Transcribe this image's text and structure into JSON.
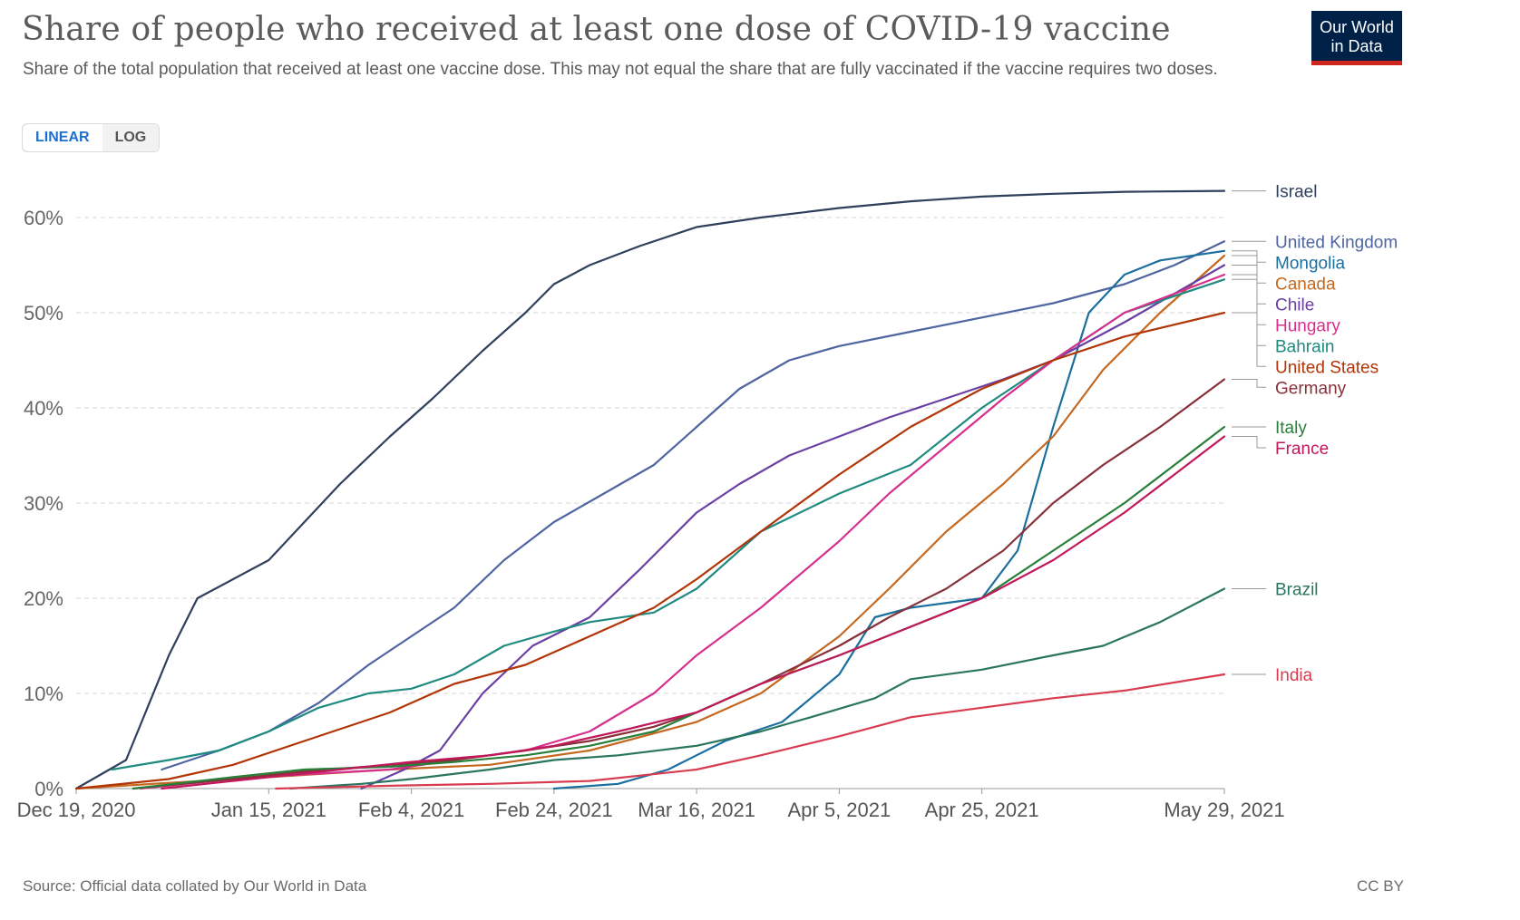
{
  "header": {
    "title": "Share of people who received at least one dose of COVID-19 vaccine",
    "subtitle": "Share of the total population that received at least one vaccine dose. This may not equal the share that are fully vaccinated if the vaccine requires two doses.",
    "logo_line1": "Our World",
    "logo_line2": "in Data"
  },
  "controls": {
    "linear_label": "LINEAR",
    "log_label": "LOG",
    "selected": "LINEAR"
  },
  "footer": {
    "source": "Source: Official data collated by Our World in Data",
    "license": "CC BY"
  },
  "chart_data": {
    "type": "line",
    "x_axis_type": "date",
    "xlim": [
      "2020-12-19",
      "2021-05-29"
    ],
    "ylim": [
      0,
      64
    ],
    "y_ticks": [
      0,
      10,
      20,
      30,
      40,
      50,
      60
    ],
    "y_tick_labels": [
      "0%",
      "10%",
      "20%",
      "30%",
      "40%",
      "50%",
      "60%"
    ],
    "x_ticks": [
      "2020-12-19",
      "2021-01-15",
      "2021-02-04",
      "2021-02-24",
      "2021-03-16",
      "2021-04-05",
      "2021-04-25",
      "2021-05-29"
    ],
    "x_tick_labels": [
      "Dec 19, 2020",
      "Jan 15, 2021",
      "Feb 4, 2021",
      "Feb 24, 2021",
      "Mar 16, 2021",
      "Apr 5, 2021",
      "Apr 25, 2021",
      "May 29, 2021"
    ],
    "grid": "horizontal dashed",
    "legend_placement": "right, labels at line ends",
    "series": [
      {
        "name": "Israel",
        "color": "#2f3f5c",
        "x": [
          "2020-12-19",
          "2020-12-26",
          "2021-01-01",
          "2021-01-05",
          "2021-01-10",
          "2021-01-15",
          "2021-01-20",
          "2021-01-25",
          "2021-02-01",
          "2021-02-07",
          "2021-02-14",
          "2021-02-20",
          "2021-02-24",
          "2021-03-01",
          "2021-03-08",
          "2021-03-16",
          "2021-03-25",
          "2021-04-05",
          "2021-04-15",
          "2021-04-25",
          "2021-05-05",
          "2021-05-15",
          "2021-05-29"
        ],
        "y": [
          0,
          3,
          14,
          20,
          22,
          24,
          28,
          32,
          37,
          41,
          46,
          50,
          53,
          55,
          57,
          59,
          60,
          61,
          61.7,
          62.2,
          62.5,
          62.7,
          62.8
        ]
      },
      {
        "name": "United Kingdom",
        "color": "#4e65a0",
        "x": [
          "2020-12-31",
          "2021-01-08",
          "2021-01-15",
          "2021-01-22",
          "2021-01-29",
          "2021-02-04",
          "2021-02-10",
          "2021-02-17",
          "2021-02-24",
          "2021-03-03",
          "2021-03-10",
          "2021-03-16",
          "2021-03-22",
          "2021-03-29",
          "2021-04-05",
          "2021-04-15",
          "2021-04-25",
          "2021-05-05",
          "2021-05-15",
          "2021-05-22",
          "2021-05-29"
        ],
        "y": [
          2,
          4,
          6,
          9,
          13,
          16,
          19,
          24,
          28,
          31,
          34,
          38,
          42,
          45,
          46.5,
          48,
          49.5,
          51,
          53,
          55,
          57.5
        ]
      },
      {
        "name": "Mongolia",
        "color": "#1c6f9d",
        "x": [
          "2021-02-24",
          "2021-03-05",
          "2021-03-12",
          "2021-03-20",
          "2021-03-28",
          "2021-04-05",
          "2021-04-10",
          "2021-04-15",
          "2021-04-25",
          "2021-04-30",
          "2021-05-05",
          "2021-05-10",
          "2021-05-15",
          "2021-05-20",
          "2021-05-29"
        ],
        "y": [
          0,
          0.5,
          2,
          5,
          7,
          12,
          18,
          19,
          20,
          25,
          38,
          50,
          54,
          55.5,
          56.5
        ]
      },
      {
        "name": "Canada",
        "color": "#c4681f",
        "x": [
          "2020-12-19",
          "2021-01-01",
          "2021-01-15",
          "2021-02-01",
          "2021-02-15",
          "2021-03-01",
          "2021-03-16",
          "2021-03-25",
          "2021-04-05",
          "2021-04-12",
          "2021-04-20",
          "2021-04-28",
          "2021-05-05",
          "2021-05-12",
          "2021-05-20",
          "2021-05-29"
        ],
        "y": [
          0,
          0.6,
          1.2,
          2,
          2.5,
          4,
          7,
          10,
          16,
          21,
          27,
          32,
          37,
          44,
          50,
          56
        ]
      },
      {
        "name": "Chile",
        "color": "#6a3fa3",
        "x": [
          "2021-01-28",
          "2021-02-03",
          "2021-02-08",
          "2021-02-14",
          "2021-02-21",
          "2021-03-01",
          "2021-03-08",
          "2021-03-16",
          "2021-03-22",
          "2021-03-29",
          "2021-04-05",
          "2021-04-12",
          "2021-04-20",
          "2021-04-28",
          "2021-05-05",
          "2021-05-15",
          "2021-05-29"
        ],
        "y": [
          0,
          2,
          4,
          10,
          15,
          18,
          23,
          29,
          32,
          35,
          37,
          39,
          41,
          43,
          45,
          49,
          55
        ]
      },
      {
        "name": "Bahrain",
        "color": "#1f8a80",
        "x": [
          "2020-12-24",
          "2021-01-01",
          "2021-01-08",
          "2021-01-15",
          "2021-01-22",
          "2021-01-29",
          "2021-02-04",
          "2021-02-10",
          "2021-02-17",
          "2021-02-24",
          "2021-03-01",
          "2021-03-10",
          "2021-03-16",
          "2021-03-25",
          "2021-04-05",
          "2021-04-15",
          "2021-04-25",
          "2021-05-05",
          "2021-05-15",
          "2021-05-29"
        ],
        "y": [
          2,
          3,
          4,
          6,
          8.5,
          10,
          10.5,
          12,
          15,
          16.5,
          17.5,
          18.5,
          21,
          27,
          31,
          34,
          40,
          45,
          50,
          53.5
        ]
      },
      {
        "name": "Hungary",
        "color": "#d62f8e",
        "x": [
          "2020-12-28",
          "2021-01-10",
          "2021-01-20",
          "2021-02-01",
          "2021-02-10",
          "2021-02-20",
          "2021-03-01",
          "2021-03-10",
          "2021-03-16",
          "2021-03-25",
          "2021-04-05",
          "2021-04-12",
          "2021-04-20",
          "2021-04-28",
          "2021-05-05",
          "2021-05-15",
          "2021-05-22",
          "2021-05-29"
        ],
        "y": [
          0,
          1,
          1.5,
          2,
          3,
          4,
          6,
          10,
          14,
          19,
          26,
          31,
          36,
          41,
          45,
          50,
          52,
          54
        ]
      },
      {
        "name": "United States",
        "color": "#b13507",
        "x": [
          "2020-12-19",
          "2021-01-01",
          "2021-01-10",
          "2021-01-20",
          "2021-02-01",
          "2021-02-10",
          "2021-02-20",
          "2021-03-01",
          "2021-03-10",
          "2021-03-16",
          "2021-03-25",
          "2021-04-05",
          "2021-04-15",
          "2021-04-25",
          "2021-05-05",
          "2021-05-15",
          "2021-05-29"
        ],
        "y": [
          0,
          1,
          2.5,
          5,
          8,
          11,
          13,
          16,
          19,
          22,
          27,
          33,
          38,
          42,
          45,
          47.5,
          50
        ]
      },
      {
        "name": "Germany",
        "color": "#883039",
        "x": [
          "2020-12-27",
          "2021-01-10",
          "2021-01-20",
          "2021-02-01",
          "2021-02-10",
          "2021-02-20",
          "2021-03-01",
          "2021-03-10",
          "2021-03-16",
          "2021-03-25",
          "2021-04-05",
          "2021-04-12",
          "2021-04-20",
          "2021-04-28",
          "2021-05-05",
          "2021-05-12",
          "2021-05-20",
          "2021-05-29"
        ],
        "y": [
          0,
          1,
          1.8,
          2.5,
          3,
          4,
          5,
          6.5,
          8,
          11,
          15,
          18,
          21,
          25,
          30,
          34,
          38,
          43
        ]
      },
      {
        "name": "Italy",
        "color": "#287f3a",
        "x": [
          "2020-12-27",
          "2021-01-10",
          "2021-01-20",
          "2021-02-01",
          "2021-02-10",
          "2021-02-20",
          "2021-03-01",
          "2021-03-10",
          "2021-03-16",
          "2021-03-25",
          "2021-04-05",
          "2021-04-15",
          "2021-04-25",
          "2021-05-05",
          "2021-05-15",
          "2021-05-22",
          "2021-05-29"
        ],
        "y": [
          0,
          1.2,
          2,
          2.3,
          2.8,
          3.5,
          4.5,
          6,
          8,
          11,
          14,
          17,
          20,
          25,
          30,
          34,
          38
        ]
      },
      {
        "name": "France",
        "color": "#c2185b",
        "x": [
          "2020-12-31",
          "2021-01-15",
          "2021-01-25",
          "2021-02-04",
          "2021-02-15",
          "2021-02-24",
          "2021-03-05",
          "2021-03-16",
          "2021-03-25",
          "2021-04-05",
          "2021-04-15",
          "2021-04-25",
          "2021-05-05",
          "2021-05-15",
          "2021-05-22",
          "2021-05-29"
        ],
        "y": [
          0,
          1.2,
          2,
          2.8,
          3.5,
          4.5,
          6,
          8,
          11,
          14,
          17,
          20,
          24,
          29,
          33,
          37
        ]
      },
      {
        "name": "Brazil",
        "color": "#2a7560",
        "x": [
          "2021-01-18",
          "2021-01-28",
          "2021-02-04",
          "2021-02-15",
          "2021-02-24",
          "2021-03-05",
          "2021-03-16",
          "2021-03-25",
          "2021-04-01",
          "2021-04-10",
          "2021-04-15",
          "2021-04-25",
          "2021-05-05",
          "2021-05-12",
          "2021-05-20",
          "2021-05-29"
        ],
        "y": [
          0,
          0.5,
          1,
          2,
          3,
          3.5,
          4.5,
          6,
          7.5,
          9.5,
          11.5,
          12.5,
          14,
          15,
          17.5,
          21
        ]
      },
      {
        "name": "India",
        "color": "#d73c50",
        "x": [
          "2021-01-16",
          "2021-02-01",
          "2021-02-15",
          "2021-03-01",
          "2021-03-16",
          "2021-03-25",
          "2021-04-05",
          "2021-04-15",
          "2021-04-25",
          "2021-05-05",
          "2021-05-15",
          "2021-05-29"
        ],
        "y": [
          0,
          0.3,
          0.5,
          0.8,
          2,
          3.5,
          5.5,
          7.5,
          8.5,
          9.5,
          10.3,
          12
        ]
      }
    ]
  }
}
